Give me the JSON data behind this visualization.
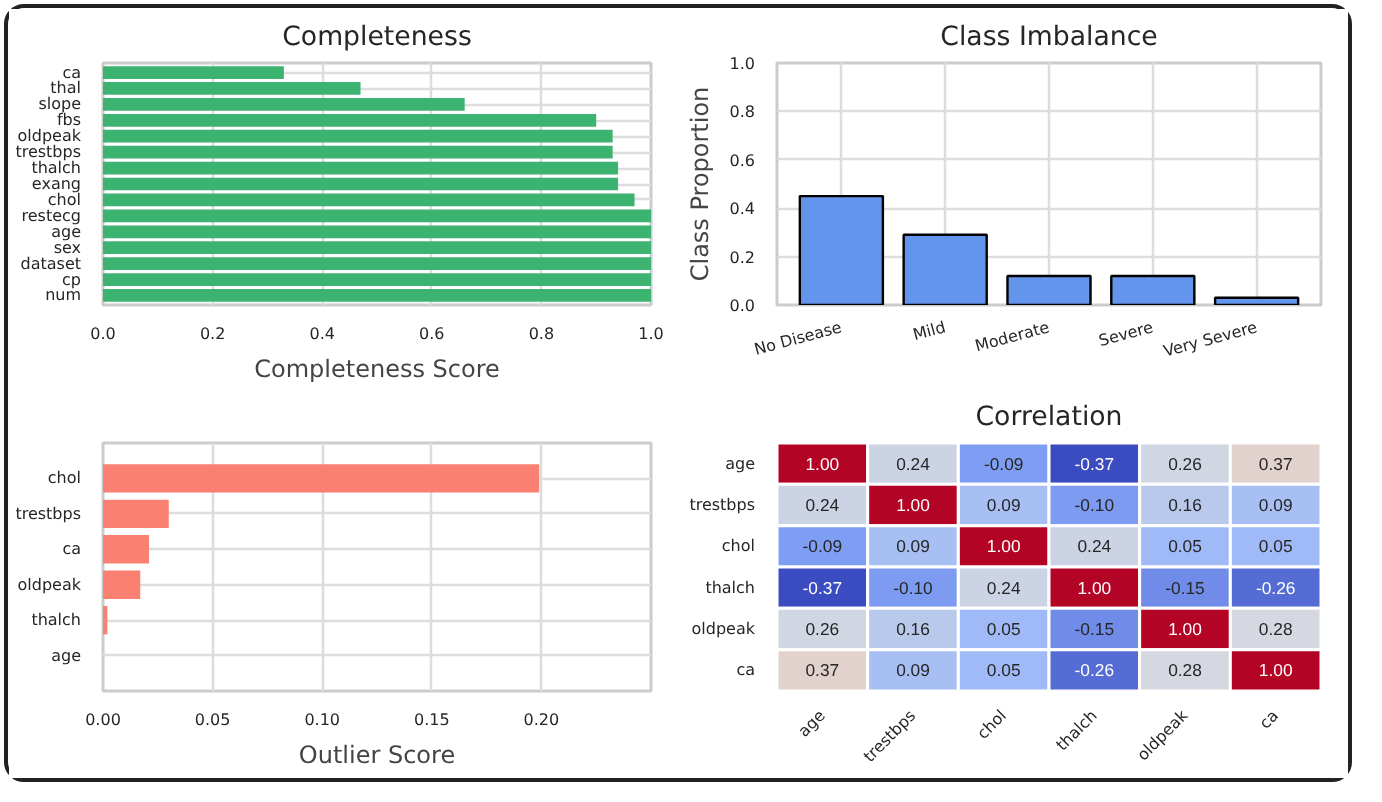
{
  "chart_data": [
    {
      "type": "bar",
      "orientation": "horizontal",
      "title": "Completeness",
      "xlabel": "Completeness Score",
      "categories": [
        "ca",
        "thal",
        "slope",
        "fbs",
        "oldpeak",
        "trestbps",
        "thalch",
        "exang",
        "chol",
        "restecg",
        "age",
        "sex",
        "dataset",
        "cp",
        "num"
      ],
      "values": [
        0.33,
        0.47,
        0.66,
        0.9,
        0.93,
        0.93,
        0.94,
        0.94,
        0.97,
        1.0,
        1.0,
        1.0,
        1.0,
        1.0,
        1.0
      ],
      "color": "#3cb371",
      "xlim": [
        0,
        1
      ],
      "xticks": [
        {
          "value": 0,
          "label": "0.0"
        },
        0.2,
        0.4,
        0.6,
        0.8,
        {
          "value": 1,
          "label": "1.0"
        }
      ],
      "grid": true
    },
    {
      "type": "bar",
      "title": "Class Imbalance",
      "ylabel": "Class Proportion",
      "categories": [
        "No Disease",
        "Mild",
        "Moderate",
        "Severe",
        "Very Severe"
      ],
      "values": [
        0.45,
        0.29,
        0.12,
        0.12,
        0.03
      ],
      "color": "#6495ed",
      "ylim": [
        0,
        1
      ],
      "yticks": [
        {
          "value": 0,
          "label": "0.0"
        },
        0.2,
        0.4,
        0.6,
        0.8,
        {
          "value": 1,
          "label": "1.0"
        }
      ],
      "grid": true
    },
    {
      "type": "bar",
      "orientation": "horizontal",
      "xlabel": "Outlier Score",
      "categories": [
        "chol",
        "trestbps",
        "ca",
        "oldpeak",
        "thalch",
        "age"
      ],
      "values": [
        0.199,
        0.03,
        0.021,
        0.017,
        0.002,
        0.0
      ],
      "color": "#fa8072",
      "xlim": [
        0,
        0.25
      ],
      "xticks": [
        {
          "value": 0,
          "label": "0.00"
        },
        0.05,
        {
          "value": 0.1,
          "label": "0.10"
        },
        0.15,
        {
          "value": 0.2,
          "label": "0.20"
        }
      ],
      "grid": true
    },
    {
      "type": "heatmap",
      "title": "Correlation",
      "categories": [
        "age",
        "trestbps",
        "chol",
        "thalch",
        "oldpeak",
        "ca"
      ],
      "y_categories": [
        "age",
        "trestbps",
        "chol",
        "thalch",
        "oldpeak",
        "ca"
      ],
      "cells": [
        [
          1.0,
          0.24,
          -0.09,
          -0.37,
          0.26,
          0.37
        ],
        [
          0.24,
          1.0,
          0.09,
          -0.1,
          0.16,
          0.09
        ],
        [
          -0.09,
          0.09,
          1.0,
          0.24,
          0.05,
          0.05
        ],
        [
          -0.37,
          -0.1,
          0.24,
          1.0,
          -0.15,
          -0.26
        ],
        [
          0.26,
          0.16,
          0.05,
          -0.15,
          1.0,
          0.28
        ],
        [
          0.37,
          0.09,
          0.05,
          -0.26,
          0.28,
          1.0
        ]
      ],
      "cell_labels": [
        [
          "1.00",
          "0.24",
          "-0.09",
          "-0.37",
          "0.26",
          "0.37"
        ],
        [
          "0.24",
          "1.00",
          "0.09",
          "-0.10",
          "0.16",
          "0.09"
        ],
        [
          "-0.09",
          "0.09",
          "1.00",
          "0.24",
          "0.05",
          "0.05"
        ],
        [
          "-0.37",
          "-0.10",
          "0.24",
          "1.00",
          "-0.15",
          "-0.26"
        ],
        [
          "0.26",
          "0.16",
          "0.05",
          "-0.15",
          "1.00",
          "0.28"
        ],
        [
          "0.37",
          "0.09",
          "0.05",
          "-0.26",
          "0.28",
          "1.00"
        ]
      ]
    }
  ]
}
